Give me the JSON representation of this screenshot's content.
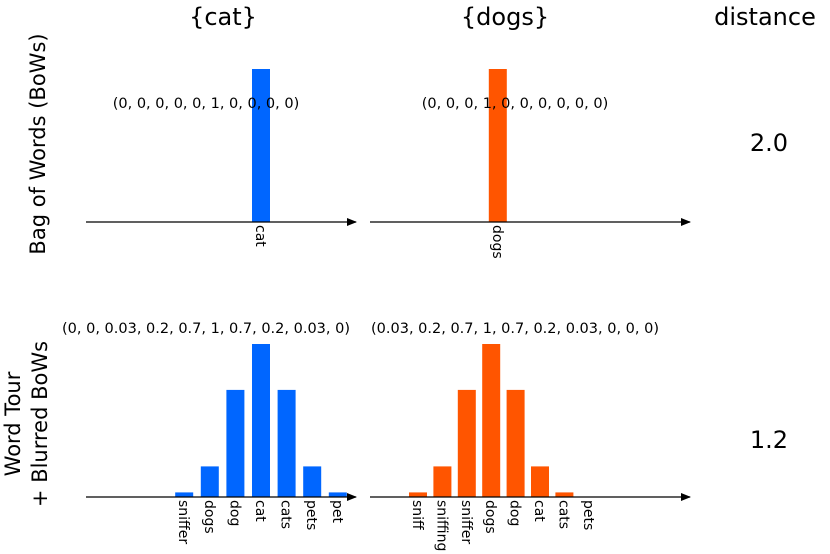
{
  "headers": {
    "left": "{cat}",
    "right": "{dogs}",
    "distance": "distance"
  },
  "rows": [
    {
      "label_lines": [
        "Bag of Words (BoWs)"
      ],
      "distance": "2.0"
    },
    {
      "label_lines": [
        "Word Tour",
        "+ Blurred BoWs"
      ],
      "distance": "1.2"
    }
  ],
  "colors": {
    "cat": "#0066ff",
    "dogs": "#ff5500",
    "axis": "#000000"
  },
  "chart_data": [
    {
      "type": "bar",
      "row": 0,
      "column": "left",
      "vector_label": "(0,  0,  0,  0,  0,  1,  0,  0,  0,  0)",
      "values": [
        0,
        0,
        0,
        0,
        0,
        1,
        0,
        0,
        0,
        0
      ],
      "tick_labels": [
        {
          "index": 5,
          "text": "cat"
        }
      ],
      "ylim": [
        0,
        1
      ],
      "series_color": "#0066ff"
    },
    {
      "type": "bar",
      "row": 0,
      "column": "right",
      "vector_label": "(0,  0,  0,  1,  0,  0,  0,  0,  0,  0)",
      "values": [
        0,
        0,
        0,
        1,
        0,
        0,
        0,
        0,
        0,
        0
      ],
      "tick_labels": [
        {
          "index": 3,
          "text": "dogs"
        }
      ],
      "ylim": [
        0,
        1
      ],
      "series_color": "#ff5500"
    },
    {
      "type": "bar",
      "row": 1,
      "column": "left",
      "vector_label": "(0, 0, 0.03, 0.2, 0.7, 1, 0.7, 0.2, 0.03, 0)",
      "values": [
        0,
        0,
        0.03,
        0.2,
        0.7,
        1,
        0.7,
        0.2,
        0.03,
        0
      ],
      "tick_labels": [
        {
          "index": 2,
          "text": "sniffer"
        },
        {
          "index": 3,
          "text": "dogs"
        },
        {
          "index": 4,
          "text": "dog"
        },
        {
          "index": 5,
          "text": "cat"
        },
        {
          "index": 6,
          "text": "cats"
        },
        {
          "index": 7,
          "text": "pets"
        },
        {
          "index": 8,
          "text": "pet"
        }
      ],
      "ylim": [
        0,
        1
      ],
      "series_color": "#0066ff"
    },
    {
      "type": "bar",
      "row": 1,
      "column": "right",
      "vector_label": "(0.03, 0.2, 0.7, 1, 0.7, 0.2, 0.03, 0, 0, 0)",
      "values": [
        0.03,
        0.2,
        0.7,
        1,
        0.7,
        0.2,
        0.03,
        0,
        0,
        0
      ],
      "tick_labels": [
        {
          "index": 0,
          "text": "sniff"
        },
        {
          "index": 1,
          "text": "sniffing"
        },
        {
          "index": 2,
          "text": "sniffer"
        },
        {
          "index": 3,
          "text": "dogs"
        },
        {
          "index": 4,
          "text": "dog"
        },
        {
          "index": 5,
          "text": "cat"
        },
        {
          "index": 6,
          "text": "cats"
        },
        {
          "index": 7,
          "text": "pets"
        }
      ],
      "ylim": [
        0,
        1
      ],
      "series_color": "#ff5500"
    }
  ]
}
